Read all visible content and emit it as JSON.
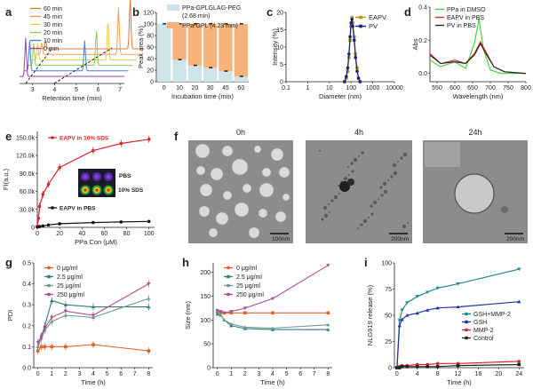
{
  "panels": {
    "a": {
      "letter": "a",
      "xlabel": "Retention time (min)",
      "ticks": [
        "3",
        "4",
        "5",
        "6",
        "7"
      ],
      "legend": [
        {
          "label": "60 min",
          "color": "#e07a3c"
        },
        {
          "label": "45 min",
          "color": "#f0a050"
        },
        {
          "label": "30 min",
          "color": "#f2c94c"
        },
        {
          "label": "20 min",
          "color": "#8fce4a"
        },
        {
          "label": "10 min",
          "color": "#4a7fd6"
        },
        {
          "label": "0 min",
          "color": "#9b3fb5"
        }
      ]
    },
    "b": {
      "letter": "b",
      "xlabel": "Incubation time (min)",
      "ylabel": "Peak area (%)",
      "legend": [
        {
          "label": "PPa-GPLGLAG-PEG",
          "sub": "(2.68 min)",
          "color": "#cfe3ea"
        },
        {
          "label": "PPa-GPL (4.23 min)",
          "sub": "",
          "color": "#f5b27a"
        }
      ]
    },
    "c": {
      "letter": "c",
      "xlabel": "Diameter (nm)",
      "ylabel": "Intensity (%)",
      "legend": [
        {
          "label": "EAPV",
          "color": "#b8960a"
        },
        {
          "label": "PV",
          "color": "#1a237e"
        }
      ]
    },
    "d": {
      "letter": "d",
      "xlabel": "Wavelength (nm)",
      "ylabel": "Abs",
      "legend": [
        {
          "label": "PPa in DMSO",
          "color": "#3ccf3c"
        },
        {
          "label": "EAPV in PBS",
          "color": "#d9262c"
        },
        {
          "label": "PV in PBS",
          "color": "#222222"
        }
      ]
    },
    "e": {
      "letter": "e",
      "xlabel": "PPa Con (μM)",
      "ylabel": "FI(a.u.)",
      "series_labels": [
        "EAPV in 10% SDS",
        "EAPV in PBS"
      ],
      "inset_labels": [
        "PBS",
        "10% SDS"
      ]
    },
    "f": {
      "letter": "f",
      "times": [
        "0h",
        "4h",
        "24h"
      ],
      "scalebars": [
        "100nm",
        "200nm",
        "200nm"
      ]
    },
    "g": {
      "letter": "g",
      "xlabel": "Time (h)",
      "ylabel": "PDI",
      "legend": [
        {
          "label": "0 μg/ml",
          "color": "#e8602c"
        },
        {
          "label": "2.5 μg/ml",
          "color": "#2e7d7a"
        },
        {
          "label": "25 μg/ml",
          "color": "#6f9a8a"
        },
        {
          "label": "250 μg/ml",
          "color": "#a8528f"
        }
      ]
    },
    "h": {
      "letter": "h",
      "xlabel": "Time (h)",
      "ylabel": "Size (nm)",
      "legend": [
        {
          "label": "0 μg/ml",
          "color": "#e8602c"
        },
        {
          "label": "2.5 μg/ml",
          "color": "#2e7d7a"
        },
        {
          "label": "25 μg/ml",
          "color": "#6f9a8a"
        },
        {
          "label": "250 μg/ml",
          "color": "#a8528f"
        }
      ]
    },
    "i": {
      "letter": "i",
      "xlabel": "Time (h)",
      "ylabel": "NLG919 release (%)",
      "legend": [
        {
          "label": "GSH+MMP-2",
          "color": "#1f8a8a"
        },
        {
          "label": "GSH",
          "color": "#2233aa"
        },
        {
          "label": "MMP-2",
          "color": "#d9262c"
        },
        {
          "label": "Control",
          "color": "#222222"
        }
      ]
    }
  },
  "chart_data": [
    {
      "type": "line",
      "panel": "a",
      "xlabel": "Retention time (min)",
      "xlim": [
        2.4,
        7.2
      ],
      "series": [
        {
          "name": "60 min",
          "peaks": [
            {
              "x": 2.68,
              "h": 0.15
            },
            {
              "x": 6.55,
              "h": 0.95
            }
          ]
        },
        {
          "name": "45 min",
          "peaks": [
            {
              "x": 2.68,
              "h": 0.2
            },
            {
              "x": 6.2,
              "h": 0.85
            }
          ]
        },
        {
          "name": "30 min",
          "peaks": [
            {
              "x": 2.68,
              "h": 0.3
            },
            {
              "x": 5.9,
              "h": 0.75
            }
          ]
        },
        {
          "name": "20 min",
          "peaks": [
            {
              "x": 2.68,
              "h": 0.4
            },
            {
              "x": 5.55,
              "h": 0.65
            }
          ]
        },
        {
          "name": "10 min",
          "peaks": [
            {
              "x": 2.68,
              "h": 0.55
            },
            {
              "x": 5.2,
              "h": 0.55
            }
          ]
        },
        {
          "name": "0 min",
          "peaks": [
            {
              "x": 2.68,
              "h": 0.7
            }
          ]
        }
      ]
    },
    {
      "type": "bar",
      "panel": "b",
      "categories": [
        "0",
        "10",
        "20",
        "30",
        "45",
        "60"
      ],
      "series": [
        {
          "name": "PPa-GPLGLAG-PEG (2.68 min)",
          "values": [
            100,
            38,
            28,
            24,
            18,
            9
          ]
        },
        {
          "name": "PPa-GPL (4.23 min)",
          "values": [
            0,
            62,
            72,
            76,
            82,
            91
          ]
        }
      ],
      "ylabel": "Peak area (%)",
      "ylim": [
        0,
        120
      ],
      "yticks": [
        0,
        20,
        40,
        60,
        80,
        100,
        120
      ]
    },
    {
      "type": "line",
      "panel": "c",
      "xlabel": "Diameter (nm)",
      "ylabel": "Intensity (%)",
      "xscale": "log",
      "xlim": [
        0.1,
        10000
      ],
      "ylim": [
        0,
        20
      ],
      "yticks": [
        0,
        5,
        10,
        15,
        20
      ],
      "xticks": [
        "0.1",
        "1",
        "10",
        "100",
        "1000",
        "10000"
      ],
      "series": [
        {
          "name": "EAPV",
          "x": [
            50,
            60,
            70,
            80,
            90,
            100,
            110,
            120,
            140,
            160,
            190,
            220,
            260
          ],
          "y": [
            0,
            1,
            3,
            7,
            12,
            16,
            18.5,
            17,
            13,
            8,
            4,
            1,
            0
          ]
        },
        {
          "name": "PV",
          "x": [
            50,
            60,
            70,
            80,
            90,
            100,
            110,
            120,
            140,
            160,
            190,
            220,
            260
          ],
          "y": [
            0,
            1.5,
            4,
            8,
            13,
            17,
            18,
            16,
            12,
            7,
            3,
            1,
            0
          ]
        }
      ]
    },
    {
      "type": "line",
      "panel": "d",
      "xlabel": "Wavelength (nm)",
      "ylabel": "Abs",
      "xlim": [
        530,
        800
      ],
      "ylim": [
        -0.05,
        0.4
      ],
      "yticks": [
        0,
        0.2,
        0.4
      ],
      "xticks": [
        550,
        600,
        650,
        700,
        750,
        800
      ],
      "series": [
        {
          "name": "PPa in DMSO",
          "x": [
            530,
            560,
            600,
            630,
            655,
            668,
            680,
            700,
            730,
            800
          ],
          "y": [
            0.08,
            0.04,
            0.07,
            0.03,
            0.18,
            0.33,
            0.15,
            0.02,
            0.0,
            0.0
          ]
        },
        {
          "name": "EAPV in PBS",
          "x": [
            530,
            560,
            600,
            630,
            655,
            672,
            690,
            710,
            740,
            800
          ],
          "y": [
            0.12,
            0.06,
            0.08,
            0.06,
            0.12,
            0.19,
            0.12,
            0.04,
            0.01,
            0.0
          ]
        },
        {
          "name": "PV in PBS",
          "x": [
            530,
            560,
            600,
            630,
            655,
            672,
            690,
            710,
            740,
            800
          ],
          "y": [
            0.11,
            0.06,
            0.07,
            0.06,
            0.11,
            0.18,
            0.11,
            0.04,
            0.01,
            0.0
          ]
        }
      ]
    },
    {
      "type": "line",
      "panel": "e",
      "xlabel": "PPa Con (μM)",
      "ylabel": "FI(a.u.)",
      "xlim": [
        0,
        105
      ],
      "ylim": [
        0,
        160000
      ],
      "xticks": [
        0,
        20,
        40,
        60,
        80,
        100
      ],
      "yticklabels": [
        "0",
        "30.0k",
        "60.0k",
        "90.0k",
        "120.0k",
        "150.0k"
      ],
      "series": [
        {
          "name": "EAPV in 10% SDS",
          "x": [
            0,
            1,
            2,
            5,
            10,
            20,
            50,
            75,
            100
          ],
          "y": [
            2000,
            15000,
            35000,
            55000,
            72000,
            100000,
            128000,
            140000,
            147000
          ]
        },
        {
          "name": "EAPV in PBS",
          "x": [
            0,
            1,
            2,
            5,
            10,
            20,
            50,
            75,
            100
          ],
          "y": [
            500,
            1000,
            1500,
            2500,
            4000,
            6000,
            8000,
            9000,
            10000
          ]
        }
      ]
    },
    {
      "type": "line",
      "panel": "g",
      "xlabel": "Time (h)",
      "ylabel": "PDI",
      "xlim": [
        -0.3,
        8.3
      ],
      "ylim": [
        0,
        0.5
      ],
      "yticks": [
        0,
        0.1,
        0.2,
        0.3,
        0.4,
        0.5
      ],
      "xticks": [
        0,
        1,
        2,
        3,
        4,
        5,
        6,
        7,
        8
      ],
      "series": [
        {
          "name": "0 μg/ml",
          "x": [
            0,
            0.25,
            0.5,
            1,
            2,
            4,
            8
          ],
          "y": [
            0.08,
            0.1,
            0.1,
            0.1,
            0.1,
            0.11,
            0.08
          ]
        },
        {
          "name": "2.5 μg/ml",
          "x": [
            0,
            0.25,
            0.5,
            1,
            2,
            4,
            8
          ],
          "y": [
            0.1,
            0.15,
            0.2,
            0.32,
            0.3,
            0.29,
            0.29
          ]
        },
        {
          "name": "25 μg/ml",
          "x": [
            0,
            0.25,
            0.5,
            1,
            2,
            4,
            8
          ],
          "y": [
            0.1,
            0.14,
            0.18,
            0.22,
            0.25,
            0.24,
            0.33
          ]
        },
        {
          "name": "250 μg/ml",
          "x": [
            0,
            0.25,
            0.5,
            1,
            2,
            4,
            8
          ],
          "y": [
            0.12,
            0.15,
            0.19,
            0.24,
            0.27,
            0.25,
            0.4
          ]
        }
      ]
    },
    {
      "type": "line",
      "panel": "h",
      "xlabel": "Time (h)",
      "ylabel": "Size (nm)",
      "xlim": [
        -0.3,
        8.3
      ],
      "ylim": [
        0,
        220
      ],
      "yticks": [
        0,
        50,
        100,
        150,
        200
      ],
      "xticks": [
        0,
        1,
        2,
        3,
        4,
        5,
        6,
        7,
        8
      ],
      "series": [
        {
          "name": "0 μg/ml",
          "x": [
            0,
            0.25,
            0.5,
            1,
            2,
            4,
            8
          ],
          "y": [
            117,
            116,
            115,
            115,
            115,
            115,
            115
          ]
        },
        {
          "name": "2.5 μg/ml",
          "x": [
            0,
            0.25,
            0.5,
            1,
            2,
            4,
            8
          ],
          "y": [
            112,
            110,
            100,
            88,
            82,
            80,
            80
          ]
        },
        {
          "name": "25 μg/ml",
          "x": [
            0,
            0.25,
            0.5,
            1,
            2,
            4,
            8
          ],
          "y": [
            118,
            110,
            100,
            92,
            85,
            83,
            90
          ]
        },
        {
          "name": "250 μg/ml",
          "x": [
            0,
            0.25,
            0.5,
            1,
            2,
            4,
            8
          ],
          "y": [
            120,
            118,
            115,
            118,
            125,
            145,
            215
          ]
        }
      ]
    },
    {
      "type": "line",
      "panel": "i",
      "xlabel": "Time (h)",
      "ylabel": "NLG919 release (%)",
      "xlim": [
        -0.5,
        25
      ],
      "ylim": [
        0,
        100
      ],
      "yticks": [
        0,
        25,
        50,
        75,
        100
      ],
      "xticks": [
        0,
        4,
        8,
        12,
        16,
        20,
        24
      ],
      "series": [
        {
          "name": "GSH+MMP-2",
          "x": [
            0,
            0.5,
            1,
            2,
            4,
            6,
            8,
            12,
            24
          ],
          "y": [
            0,
            45,
            55,
            62,
            68,
            72,
            76,
            80,
            94
          ]
        },
        {
          "name": "GSH",
          "x": [
            0,
            0.5,
            1,
            2,
            4,
            6,
            8,
            12,
            24
          ],
          "y": [
            0,
            40,
            46,
            50,
            52,
            55,
            57,
            58,
            63
          ]
        },
        {
          "name": "MMP-2",
          "x": [
            0,
            0.5,
            1,
            2,
            4,
            6,
            8,
            12,
            24
          ],
          "y": [
            0,
            1,
            2,
            2,
            3,
            3,
            4,
            4,
            6
          ]
        },
        {
          "name": "Control",
          "x": [
            0,
            0.5,
            1,
            2,
            4,
            6,
            8,
            12,
            24
          ],
          "y": [
            0,
            0,
            1,
            1,
            1,
            1,
            1,
            2,
            3
          ]
        }
      ]
    }
  ]
}
